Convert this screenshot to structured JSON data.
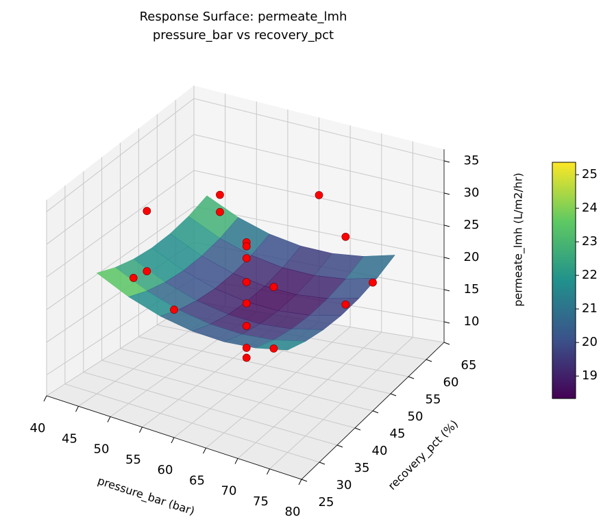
{
  "chart_data": {
    "type": "surface3d",
    "title": "Response Surface: permeate_lmh",
    "subtitle": "pressure_bar vs recovery_pct",
    "xlabel": "pressure_bar (bar)",
    "ylabel": "recovery_pct (%)",
    "zlabel": "permeate_lmh (L/m2/hr)",
    "xlim": [
      40,
      80
    ],
    "ylim": [
      25,
      65
    ],
    "zlim": [
      6.8,
      36.8
    ],
    "xticks": [
      40,
      45,
      50,
      55,
      60,
      65,
      70,
      75,
      80
    ],
    "yticks": [
      25,
      30,
      35,
      40,
      45,
      50,
      55,
      60,
      65
    ],
    "zticks": [
      10,
      15,
      20,
      25,
      30,
      35
    ],
    "grid": true,
    "colormap": "viridis",
    "surface": {
      "x": [
        45,
        50,
        55,
        60,
        65,
        70,
        75
      ],
      "y": [
        30,
        35,
        40,
        45,
        50,
        55,
        60
      ],
      "z": [
        [
          25.14,
          23.07,
          21.67,
          20.94,
          20.87,
          21.47,
          22.74
        ],
        [
          23.9,
          21.83,
          20.43,
          19.7,
          19.63,
          20.23,
          21.5
        ],
        [
          23.1,
          21.03,
          19.63,
          18.9,
          18.83,
          19.43,
          20.7
        ],
        [
          22.74,
          20.67,
          19.27,
          18.54,
          18.47,
          19.07,
          20.34
        ],
        [
          22.83,
          20.76,
          19.36,
          18.63,
          18.56,
          19.16,
          20.43
        ],
        [
          23.36,
          21.29,
          19.89,
          19.16,
          19.09,
          19.69,
          20.96
        ],
        [
          24.34,
          22.27,
          20.87,
          20.14,
          20.07,
          20.67,
          21.94
        ]
      ]
    },
    "scatter": {
      "color": "#ff0000",
      "x": [
        50,
        50,
        45,
        50,
        50,
        70,
        70,
        70,
        70,
        60,
        80,
        60,
        60,
        60,
        60,
        60,
        60,
        60,
        60,
        60
      ],
      "y": [
        35,
        35,
        40,
        55,
        55,
        55,
        55,
        35,
        35,
        65,
        45,
        25,
        45,
        45,
        45,
        45,
        45,
        45,
        45,
        45
      ],
      "z": [
        33.9,
        24.8,
        20.3,
        27.6,
        25.1,
        26.1,
        15.8,
        18.9,
        28.4,
        25.4,
        26.8,
        26.6,
        27.5,
        26.9,
        25.1,
        21.5,
        18.3,
        14.9,
        11.6,
        10.1
      ]
    },
    "colorbar": {
      "clim": [
        18.33,
        25.37
      ],
      "ticks": [
        19,
        20,
        21,
        22,
        23,
        24,
        25
      ]
    }
  }
}
